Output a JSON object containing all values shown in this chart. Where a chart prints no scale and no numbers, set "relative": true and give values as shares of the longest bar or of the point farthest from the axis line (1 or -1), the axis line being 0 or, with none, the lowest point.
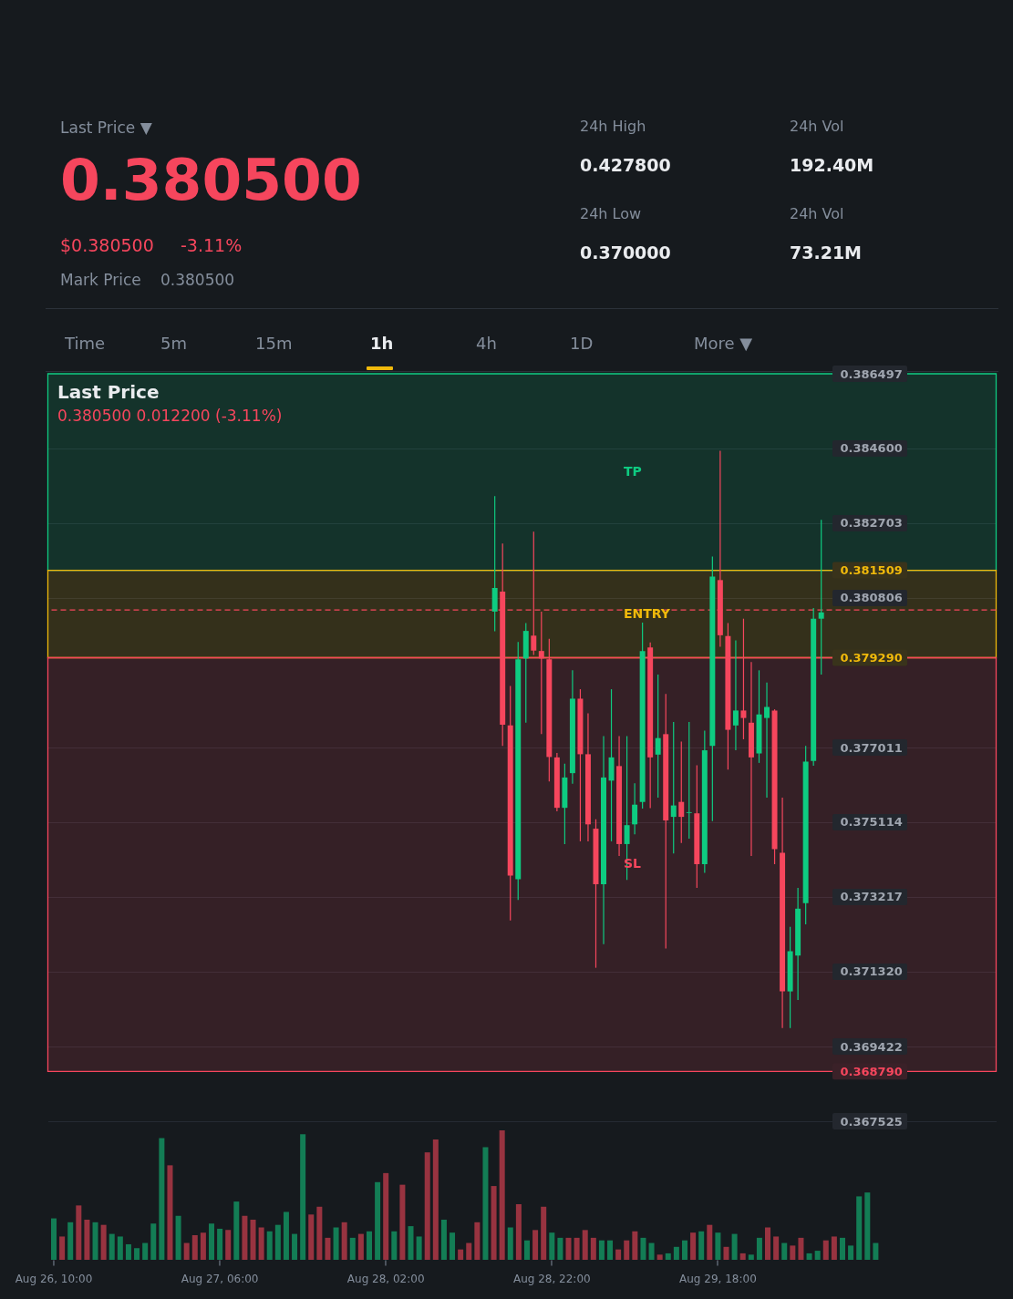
{
  "chart_data": [
    {
      "type": "other",
      "annotations": [
        "Last Price ▼",
        "0.380500",
        "$0.380500",
        "-3.11%",
        "Mark Price",
        "0.380500",
        "24h High",
        "0.427800",
        "24h Vol",
        "192.40M",
        "24h Low",
        "0.370000",
        "24h Vol",
        "73.21M",
        "Time",
        "5m",
        "15m",
        "1h",
        "4h",
        "1D",
        "More ▼"
      ]
    },
    {
      "type": "candlestick",
      "title": "Last Price",
      "subtitle": "0.380500 0.012200 (-3.11%)",
      "categories": [
        null,
        null,
        null,
        null,
        null,
        null,
        null,
        null,
        null,
        null,
        null,
        null,
        null,
        null,
        null,
        null,
        null,
        null,
        null,
        null,
        null,
        null,
        null,
        null,
        null,
        null,
        null,
        null,
        null,
        null,
        null,
        null,
        null,
        null,
        null,
        null,
        null,
        null,
        null,
        null,
        null,
        null,
        null,
        null,
        null,
        null,
        null,
        null,
        null,
        null,
        null,
        null,
        null,
        null,
        null,
        null,
        null,
        null,
        null,
        null,
        null,
        null,
        null,
        null,
        null,
        null,
        null,
        null,
        null,
        null,
        null,
        null,
        null,
        null,
        null,
        null,
        null,
        null,
        null,
        null,
        null,
        null,
        null,
        null,
        null,
        null,
        null,
        null,
        null,
        null,
        null,
        null,
        null,
        null,
        null,
        null,
        null,
        null,
        null,
        null,
        null,
        null,
        null,
        null,
        null,
        null,
        null,
        null,
        null,
        null,
        null,
        null,
        null,
        null,
        null,
        null,
        null,
        null,
        null,
        null,
        null,
        null
      ],
      "ohlc": [
        null,
        null,
        null,
        null,
        null,
        null,
        null,
        null,
        null,
        null,
        null,
        null,
        null,
        null,
        null,
        null,
        null,
        null,
        null,
        null,
        null,
        null,
        null,
        null,
        null,
        null,
        null,
        null,
        null,
        null,
        null,
        null,
        null,
        null,
        null,
        null,
        null,
        null,
        null,
        null,
        null,
        null,
        null,
        null,
        null,
        null,
        null,
        null,
        null,
        null,
        null,
        null,
        null,
        null,
        null,
        null,
        null,
        [
          0.38046,
          0.38339,
          0.37996,
          0.38106
        ],
        [
          0.38097,
          0.38219,
          0.37705,
          0.37759
        ],
        [
          0.37757,
          0.37857,
          0.37262,
          0.37376
        ],
        [
          0.37367,
          0.37969,
          0.37314,
          0.37925
        ],
        [
          0.37927,
          0.38017,
          0.37764,
          0.37997
        ],
        [
          0.37985,
          0.38249,
          0.37936,
          0.37947
        ],
        [
          0.37946,
          0.38046,
          0.37735,
          0.37927
        ],
        [
          0.37925,
          0.37977,
          0.37615,
          0.37677
        ],
        [
          0.37676,
          0.37687,
          0.37539,
          0.37548
        ],
        [
          0.37548,
          0.3766,
          0.37456,
          0.37625
        ],
        [
          0.37636,
          0.37897,
          0.37609,
          0.37825
        ],
        [
          0.37825,
          0.37849,
          0.37463,
          0.37684
        ],
        [
          0.37684,
          0.37788,
          0.37463,
          0.37506
        ],
        [
          0.37495,
          0.37519,
          0.37142,
          0.37354
        ],
        [
          0.37354,
          0.3773,
          0.37202,
          0.37625
        ],
        [
          0.37617,
          0.37849,
          0.37463,
          0.37676
        ],
        [
          0.37654,
          0.3773,
          0.37426,
          0.37456
        ],
        [
          0.37456,
          0.3773,
          0.37365,
          0.37504
        ],
        [
          0.37506,
          0.3761,
          0.37481,
          0.37556
        ],
        [
          0.37563,
          0.38018,
          0.37546,
          0.37946
        ],
        [
          0.37955,
          0.37968,
          0.37547,
          0.37676
        ],
        [
          0.37683,
          0.37886,
          0.37574,
          0.37725
        ],
        [
          0.37735,
          0.37837,
          0.37191,
          0.37516
        ],
        [
          0.37525,
          0.37766,
          0.37432,
          0.37554
        ],
        [
          0.37563,
          0.37716,
          0.37459,
          0.37525
        ],
        [
          0.37535,
          0.37766,
          0.3747,
          0.37537
        ],
        [
          0.37534,
          0.37656,
          0.37345,
          0.37405
        ],
        [
          0.37405,
          0.37744,
          0.37383,
          0.37694
        ],
        [
          0.37705,
          0.38186,
          0.37514,
          0.38135
        ],
        [
          0.38126,
          0.38454,
          0.37957,
          0.37986
        ],
        [
          0.37984,
          0.38017,
          0.37645,
          0.37746
        ],
        [
          0.37757,
          0.37973,
          0.37694,
          0.37795
        ],
        [
          0.37795,
          0.38028,
          0.37722,
          0.37776
        ],
        [
          0.37764,
          0.37918,
          0.37426,
          0.37676
        ],
        [
          0.37686,
          0.37897,
          0.37662,
          0.37785
        ],
        [
          0.37776,
          0.37866,
          0.37574,
          0.37804
        ],
        [
          0.37795,
          0.37798,
          0.37405,
          0.37443
        ],
        [
          0.37434,
          0.37574,
          0.36989,
          0.37082
        ],
        [
          0.37082,
          0.37246,
          0.36989,
          0.37184
        ],
        [
          0.37173,
          0.37345,
          0.3706,
          0.37292
        ],
        [
          0.37306,
          0.37705,
          0.37252,
          0.37665
        ],
        [
          0.37667,
          0.38055,
          0.37655,
          0.38028
        ],
        [
          0.38028,
          0.38279,
          0.37886,
          0.38044
        ],
        null,
        null,
        null,
        null,
        null,
        null,
        null,
        null,
        null,
        null,
        null,
        null,
        null,
        null,
        null,
        null,
        null,
        null,
        null,
        null,
        null,
        null
      ],
      "colors": [
        null,
        null,
        null,
        null,
        null,
        null,
        null,
        null,
        null,
        null,
        null,
        null,
        null,
        null,
        null,
        null,
        null,
        null,
        null,
        null,
        null,
        null,
        null,
        null,
        null,
        null,
        null,
        null,
        null,
        null,
        null,
        null,
        null,
        null,
        null,
        null,
        null,
        null,
        null,
        null,
        null,
        null,
        null,
        null,
        null,
        null,
        null,
        null,
        null,
        null,
        null,
        null,
        null,
        null,
        null,
        null,
        null,
        "#0ecb81",
        "#f6465d",
        "#f6465d",
        "#0ecb81",
        "#0ecb81",
        "#f6465d",
        "#f6465d",
        "#f6465d",
        "#f6465d",
        "#0ecb81",
        "#0ecb81",
        "#f6465d",
        "#f6465d",
        "#f6465d",
        "#0ecb81",
        "#0ecb81",
        "#f6465d",
        "#0ecb81",
        "#0ecb81",
        "#0ecb81",
        "#f6465d",
        "#0ecb81",
        "#f6465d",
        "#0ecb81",
        "#f6465d",
        "#0ecb81",
        "#f6465d",
        "#0ecb81",
        "#0ecb81",
        "#f6465d",
        "#f6465d",
        "#0ecb81",
        "#f6465d",
        "#f6465d",
        "#0ecb81",
        "#0ecb81",
        "#f6465d",
        "#f6465d",
        "#0ecb81",
        "#0ecb81",
        "#0ecb81",
        "#0ecb81",
        "#0ecb81",
        null,
        null,
        null,
        null,
        null,
        null,
        null,
        null,
        null,
        null,
        null,
        null,
        null,
        null,
        null,
        null,
        null,
        null,
        null,
        null,
        null,
        null
      ],
      "ylim": [
        0.367525,
        0.386497
      ],
      "yticks": [
        0.386497,
        {
          "value": 0.3846,
          "label": "0.384600"
        },
        0.382703,
        0.381509,
        0.380806,
        {
          "value": 0.37929,
          "label": "0.379290"
        },
        0.377011,
        0.375114,
        0.373217,
        {
          "value": 0.37132,
          "label": "0.371320"
        },
        0.369422,
        {
          "value": 0.36879,
          "label": "0.368790"
        },
        0.367525
      ],
      "grid": "y",
      "tick_labels": "y",
      "bands": [
        {
          "axis": "y",
          "from": 0.381509,
          "to": 0.386497,
          "label": "TP",
          "color": "#0ecb81"
        },
        {
          "axis": "y",
          "from": 0.37929,
          "to": 0.381509,
          "label": "ENTRY",
          "color": "#f0b90b"
        },
        {
          "axis": "y",
          "from": 0.36879,
          "to": 0.37929,
          "label": "SL",
          "color": "#f6465d"
        }
      ],
      "ref_lines": [
        {
          "axis": "y",
          "value": 0.3805,
          "color": "#f6465d",
          "line_style": "dashed"
        }
      ]
    },
    {
      "type": "bar",
      "relative": true,
      "categories": [
        "Aug 26, 10:00",
        null,
        null,
        null,
        null,
        null,
        null,
        null,
        null,
        null,
        null,
        null,
        null,
        null,
        null,
        null,
        null,
        null,
        null,
        null,
        "Aug 27, 06:00",
        null,
        null,
        null,
        null,
        null,
        null,
        null,
        null,
        null,
        null,
        null,
        null,
        null,
        null,
        null,
        null,
        null,
        null,
        null,
        "Aug 28, 02:00",
        null,
        null,
        null,
        null,
        null,
        null,
        null,
        null,
        null,
        null,
        null,
        null,
        null,
        null,
        null,
        null,
        null,
        null,
        null,
        "Aug 28, 22:00",
        null,
        null,
        null,
        null,
        null,
        null,
        null,
        null,
        null,
        null,
        null,
        null,
        null,
        null,
        null,
        null,
        null,
        null,
        null,
        "Aug 29, 18:00",
        null,
        null,
        null,
        null,
        null,
        null,
        null,
        null,
        null,
        null,
        null,
        null,
        null,
        null,
        null,
        null,
        null,
        null,
        null,
        null,
        null,
        null,
        null,
        null,
        null,
        null,
        null,
        null,
        null,
        null,
        null,
        null,
        null
      ],
      "values": [
        0.32,
        0.18,
        0.29,
        0.42,
        0.31,
        0.29,
        0.27,
        0.2,
        0.18,
        0.12,
        0.09,
        0.13,
        0.28,
        0.94,
        0.73,
        0.34,
        0.13,
        0.19,
        0.21,
        0.28,
        0.24,
        0.23,
        0.45,
        0.34,
        0.31,
        0.25,
        0.22,
        0.27,
        0.37,
        0.2,
        0.97,
        0.35,
        0.41,
        0.17,
        0.25,
        0.29,
        0.17,
        0.2,
        0.22,
        0.6,
        0.67,
        0.22,
        0.58,
        0.26,
        0.18,
        0.83,
        0.93,
        0.31,
        0.21,
        0.08,
        0.13,
        0.29,
        0.87,
        0.57,
        1,
        0.25,
        0.43,
        0.15,
        0.23,
        0.41,
        0.21,
        0.17,
        0.17,
        0.17,
        0.23,
        0.17,
        0.15,
        0.15,
        0.08,
        0.15,
        0.22,
        0.17,
        0.13,
        0.04,
        0.05,
        0.1,
        0.15,
        0.21,
        0.22,
        0.27,
        0.21,
        0.1,
        0.2,
        0.05,
        0.04,
        0.17,
        0.25,
        0.18,
        0.13,
        0.11,
        0.17,
        0.05,
        0.07,
        0.15,
        0.18,
        0.17,
        0.11,
        0.49,
        0.52,
        0.13,
        null,
        null,
        null,
        null,
        null,
        null,
        null,
        null,
        null,
        null,
        null,
        null,
        null,
        null
      ],
      "colors": [
        "#137d55",
        "#983340",
        "#137d55",
        "#983340",
        "#983340",
        "#137d55",
        "#983340",
        "#137d55",
        "#137d55",
        "#137d55",
        "#137d55",
        "#137d55",
        "#137d55",
        "#137d55",
        "#983340",
        "#137d55",
        "#983340",
        "#983340",
        "#983340",
        "#137d55",
        "#137d55",
        "#983340",
        "#137d55",
        "#983340",
        "#983340",
        "#983340",
        "#137d55",
        "#137d55",
        "#137d55",
        "#137d55",
        "#137d55",
        "#983340",
        "#983340",
        "#983340",
        "#137d55",
        "#983340",
        "#137d55",
        "#983340",
        "#137d55",
        "#137d55",
        "#983340",
        "#137d55",
        "#983340",
        "#137d55",
        "#137d55",
        "#983340",
        "#983340",
        "#137d55",
        "#137d55",
        "#983340",
        "#983340",
        "#983340",
        "#137d55",
        "#983340",
        "#983340",
        "#137d55",
        "#983340",
        "#137d55",
        "#983340",
        "#983340",
        "#137d55",
        "#137d55",
        "#983340",
        "#983340",
        "#983340",
        "#983340",
        "#137d55",
        "#137d55",
        "#983340",
        "#983340",
        "#983340",
        "#137d55",
        "#137d55",
        "#983340",
        "#137d55",
        "#137d55",
        "#137d55",
        "#983340",
        "#137d55",
        "#983340",
        "#137d55",
        "#983340",
        "#137d55",
        "#983340",
        "#137d55",
        "#137d55",
        "#983340",
        "#983340",
        "#137d55",
        "#983340",
        "#983340",
        "#137d55",
        "#137d55",
        "#983340",
        "#983340",
        "#137d55",
        "#137d55",
        "#137d55",
        "#137d55",
        "#137d55",
        null,
        null,
        null,
        null,
        null,
        null,
        null,
        null,
        null,
        null,
        null,
        null,
        null,
        null
      ],
      "tick_labels": "x"
    }
  ]
}
